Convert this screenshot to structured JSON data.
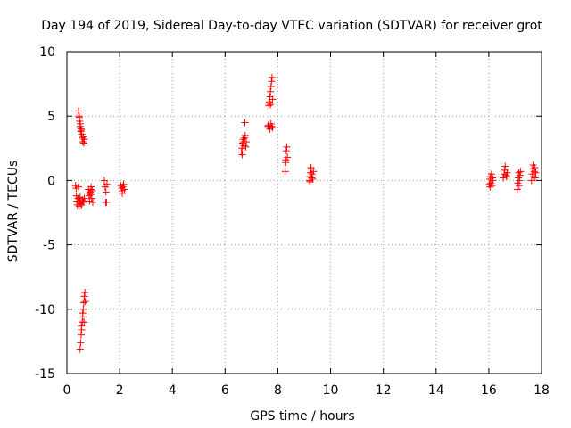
{
  "chart_data": {
    "type": "scatter",
    "title": "Day 194 of 2019, Sidereal Day-to-day VTEC variation (SDTVAR) for receiver grot",
    "xlabel": "GPS time / hours",
    "ylabel": "SDTVAR / TECUs",
    "xlim": [
      0,
      18
    ],
    "ylim": [
      -15,
      10
    ],
    "xticks": [
      0,
      2,
      4,
      6,
      8,
      10,
      12,
      14,
      16,
      18
    ],
    "yticks": [
      -15,
      -10,
      -5,
      0,
      5,
      10
    ],
    "xtick_labels": [
      "0",
      "2",
      "4",
      "6",
      "8",
      "10",
      "12",
      "14",
      "16",
      "18"
    ],
    "ytick_labels": [
      "-15",
      "-10",
      "-5",
      "0",
      "5",
      "10"
    ],
    "grid": true,
    "marker": "plus",
    "marker_color": "#ff0000",
    "series": [
      {
        "name": "SDTVAR",
        "points": [
          [
            0.33,
            -0.4
          ],
          [
            0.35,
            -0.6
          ],
          [
            0.36,
            -1.2
          ],
          [
            0.38,
            -1.6
          ],
          [
            0.4,
            -1.9
          ],
          [
            0.42,
            -1.4
          ],
          [
            0.44,
            -0.5
          ],
          [
            0.46,
            -2.0
          ],
          [
            0.48,
            -1.7
          ],
          [
            0.5,
            -1.3
          ],
          [
            0.52,
            -1.8
          ],
          [
            0.55,
            -1.9
          ],
          [
            0.58,
            -1.5
          ],
          [
            0.6,
            -1.6
          ],
          [
            0.63,
            -1.7
          ],
          [
            0.66,
            -1.4
          ],
          [
            0.44,
            5.4
          ],
          [
            0.46,
            5.0
          ],
          [
            0.48,
            4.6
          ],
          [
            0.5,
            4.2
          ],
          [
            0.52,
            3.8
          ],
          [
            0.54,
            4.0
          ],
          [
            0.56,
            3.6
          ],
          [
            0.58,
            3.3
          ],
          [
            0.6,
            3.0
          ],
          [
            0.62,
            3.4
          ],
          [
            0.64,
            2.9
          ],
          [
            0.66,
            3.2
          ],
          [
            0.47,
            4.9
          ],
          [
            0.51,
            4.4
          ],
          [
            0.55,
            3.9
          ],
          [
            0.5,
            -13.1
          ],
          [
            0.52,
            -12.6
          ],
          [
            0.54,
            -12.0
          ],
          [
            0.56,
            -11.6
          ],
          [
            0.58,
            -11.0
          ],
          [
            0.6,
            -10.6
          ],
          [
            0.62,
            -10.0
          ],
          [
            0.64,
            -9.5
          ],
          [
            0.66,
            -9.0
          ],
          [
            0.68,
            -8.7
          ],
          [
            0.55,
            -11.3
          ],
          [
            0.6,
            -10.3
          ],
          [
            0.65,
            -11.0
          ],
          [
            0.7,
            -9.4
          ],
          [
            0.82,
            -0.7
          ],
          [
            0.84,
            -1.2
          ],
          [
            0.86,
            -1.6
          ],
          [
            0.88,
            -0.9
          ],
          [
            0.9,
            -1.1
          ],
          [
            0.92,
            -0.5
          ],
          [
            0.94,
            -1.4
          ],
          [
            0.96,
            -0.8
          ],
          [
            0.98,
            -1.7
          ],
          [
            0.85,
            -1.0
          ],
          [
            0.91,
            -0.7
          ],
          [
            1.42,
            0.0
          ],
          [
            1.45,
            -0.5
          ],
          [
            1.48,
            -0.9
          ],
          [
            1.5,
            -1.7
          ],
          [
            1.52,
            -0.3
          ],
          [
            1.47,
            -1.7
          ],
          [
            2.05,
            -0.4
          ],
          [
            2.08,
            -0.6
          ],
          [
            2.1,
            -0.8
          ],
          [
            2.12,
            -0.5
          ],
          [
            2.15,
            -0.3
          ],
          [
            2.1,
            -1.0
          ],
          [
            2.18,
            -0.7
          ],
          [
            6.62,
            2.2
          ],
          [
            6.64,
            2.5
          ],
          [
            6.66,
            2.9
          ],
          [
            6.68,
            3.2
          ],
          [
            6.7,
            3.0
          ],
          [
            6.72,
            2.7
          ],
          [
            6.74,
            3.3
          ],
          [
            6.76,
            3.5
          ],
          [
            6.78,
            2.6
          ],
          [
            6.8,
            3.0
          ],
          [
            6.75,
            4.5
          ],
          [
            6.65,
            2.0
          ],
          [
            7.62,
            4.2
          ],
          [
            7.64,
            4.3
          ],
          [
            7.66,
            5.8
          ],
          [
            7.68,
            6.1
          ],
          [
            7.7,
            6.5
          ],
          [
            7.72,
            6.9
          ],
          [
            7.74,
            7.3
          ],
          [
            7.76,
            7.7
          ],
          [
            7.78,
            8.0
          ],
          [
            7.7,
            4.0
          ],
          [
            7.74,
            4.4
          ],
          [
            7.8,
            6.3
          ],
          [
            7.66,
            6.0
          ],
          [
            7.72,
            5.9
          ],
          [
            7.76,
            4.2
          ],
          [
            7.8,
            4.1
          ],
          [
            8.28,
            0.7
          ],
          [
            8.3,
            1.6
          ],
          [
            8.32,
            2.3
          ],
          [
            8.34,
            2.6
          ],
          [
            8.36,
            1.8
          ],
          [
            8.3,
            1.4
          ],
          [
            9.2,
            0.0
          ],
          [
            9.22,
            0.3
          ],
          [
            9.24,
            0.6
          ],
          [
            9.26,
            0.9
          ],
          [
            9.28,
            0.2
          ],
          [
            9.3,
            0.5
          ],
          [
            9.32,
            0.1
          ],
          [
            9.25,
            1.0
          ],
          [
            9.35,
            0.7
          ],
          [
            9.22,
            -0.1
          ],
          [
            16.02,
            -0.3
          ],
          [
            16.04,
            0.1
          ],
          [
            16.06,
            0.3
          ],
          [
            16.08,
            -0.2
          ],
          [
            16.1,
            0.5
          ],
          [
            16.12,
            -0.4
          ],
          [
            16.14,
            0.2
          ],
          [
            16.16,
            0.0
          ],
          [
            16.05,
            -0.5
          ],
          [
            16.55,
            0.2
          ],
          [
            16.58,
            0.5
          ],
          [
            16.6,
            0.8
          ],
          [
            16.62,
            1.1
          ],
          [
            16.65,
            0.4
          ],
          [
            16.68,
            0.3
          ],
          [
            16.7,
            0.6
          ],
          [
            17.08,
            -0.7
          ],
          [
            17.1,
            -0.2
          ],
          [
            17.12,
            0.2
          ],
          [
            17.14,
            0.6
          ],
          [
            17.16,
            0.0
          ],
          [
            17.18,
            0.4
          ],
          [
            17.2,
            0.7
          ],
          [
            17.15,
            -0.4
          ],
          [
            17.62,
            0.0
          ],
          [
            17.64,
            0.5
          ],
          [
            17.66,
            0.9
          ],
          [
            17.68,
            1.2
          ],
          [
            17.7,
            0.3
          ],
          [
            17.72,
            0.7
          ],
          [
            17.74,
            1.0
          ],
          [
            17.76,
            0.2
          ],
          [
            17.78,
            0.6
          ]
        ]
      }
    ]
  }
}
